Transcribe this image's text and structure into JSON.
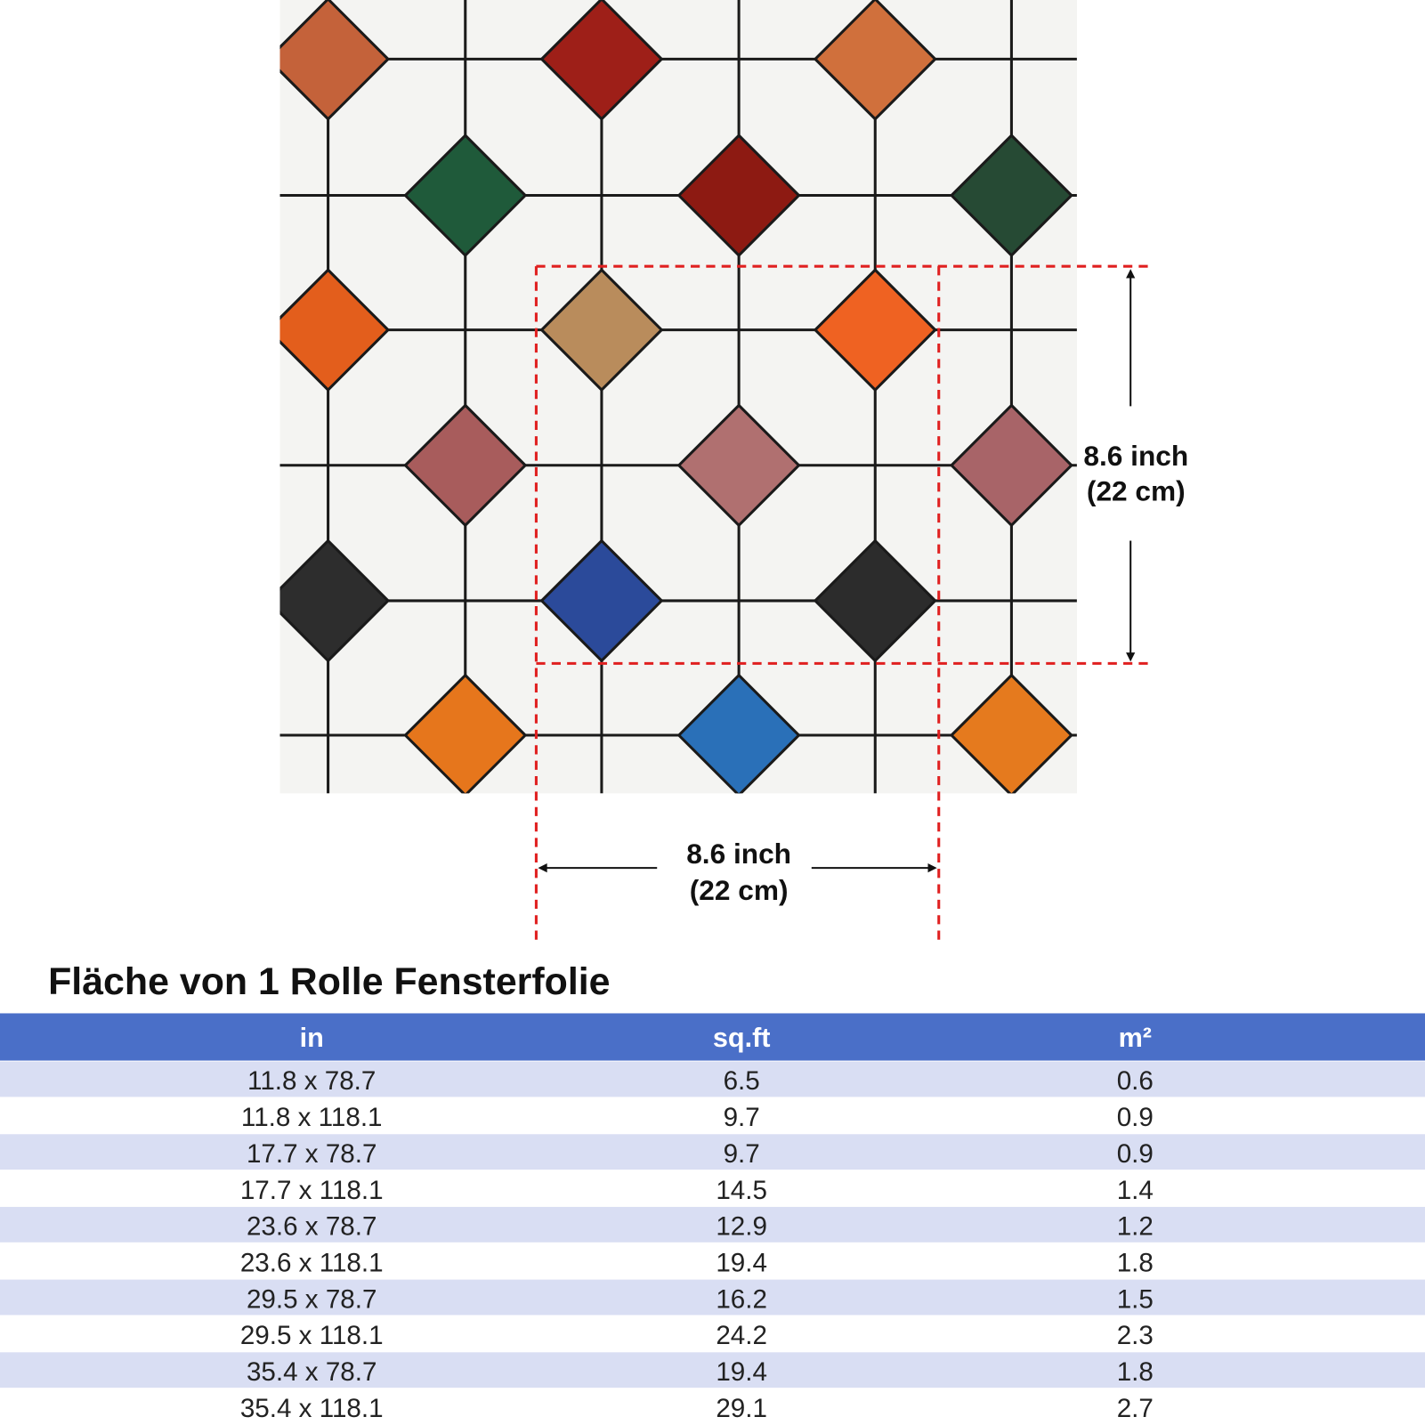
{
  "dimensions": {
    "height": [
      "8.6 inch",
      "(22 cm)"
    ],
    "width": [
      "8.6 inch",
      "(22 cm)"
    ]
  },
  "table": {
    "title": "Fläche von 1 Rolle Fensterfolie",
    "headers": [
      "in",
      "sq.ft",
      "m²"
    ],
    "rows": [
      [
        "11.8 x 78.7",
        6.5,
        0.6
      ],
      [
        "11.8 x 118.1",
        9.7,
        0.9
      ],
      [
        "17.7 x 78.7",
        9.7,
        0.9
      ],
      [
        "17.7 x 118.1",
        14.5,
        1.4
      ],
      [
        "23.6 x 78.7",
        12.9,
        1.2
      ],
      [
        "23.6 x 118.1",
        19.4,
        1.8
      ],
      [
        "29.5 x 78.7",
        16.2,
        1.5
      ],
      [
        "29.5 x 118.1",
        24.2,
        2.3
      ],
      [
        "35.4 x 78.7",
        19.4,
        1.8
      ],
      [
        "35.4 x 118.1",
        29.1,
        2.7
      ]
    ]
  }
}
